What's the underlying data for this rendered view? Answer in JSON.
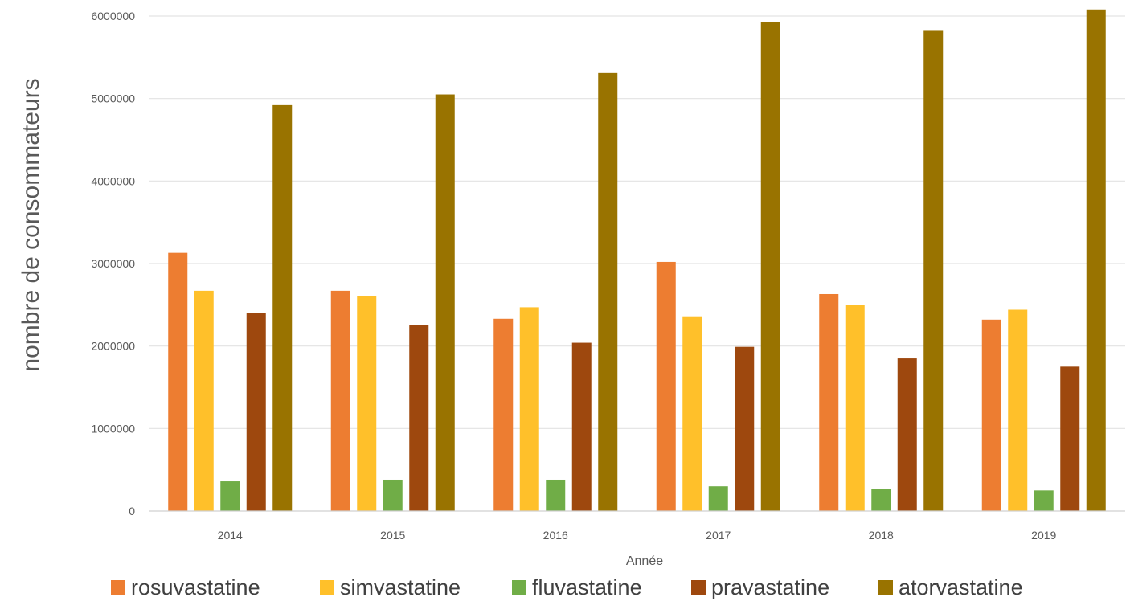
{
  "chart_data": {
    "type": "bar",
    "categories": [
      "2014",
      "2015",
      "2016",
      "2017",
      "2018",
      "2019"
    ],
    "series": [
      {
        "name": "rosuvastatine",
        "color": "#ED7D31",
        "values": [
          3130000,
          2670000,
          2330000,
          3020000,
          2630000,
          2320000
        ]
      },
      {
        "name": "simvastatine",
        "color": "#FFC02A",
        "values": [
          2670000,
          2610000,
          2470000,
          2360000,
          2500000,
          2440000
        ]
      },
      {
        "name": "fluvastatine",
        "color": "#70AD47",
        "values": [
          360000,
          380000,
          380000,
          300000,
          270000,
          250000
        ]
      },
      {
        "name": "pravastatine",
        "color": "#9E480E",
        "values": [
          2400000,
          2250000,
          2040000,
          1990000,
          1850000,
          1750000
        ]
      },
      {
        "name": "atorvastatine",
        "color": "#997300",
        "values": [
          4920000,
          5050000,
          5310000,
          5930000,
          5830000,
          6080000
        ]
      }
    ],
    "xlabel": "Année",
    "ylabel": "nombre de consommateurs",
    "ylim": [
      0,
      6000000
    ],
    "yticks": [
      "0",
      "1000000",
      "2000000",
      "3000000",
      "4000000",
      "5000000",
      "6000000"
    ],
    "grid": true,
    "legend_position": "bottom"
  }
}
